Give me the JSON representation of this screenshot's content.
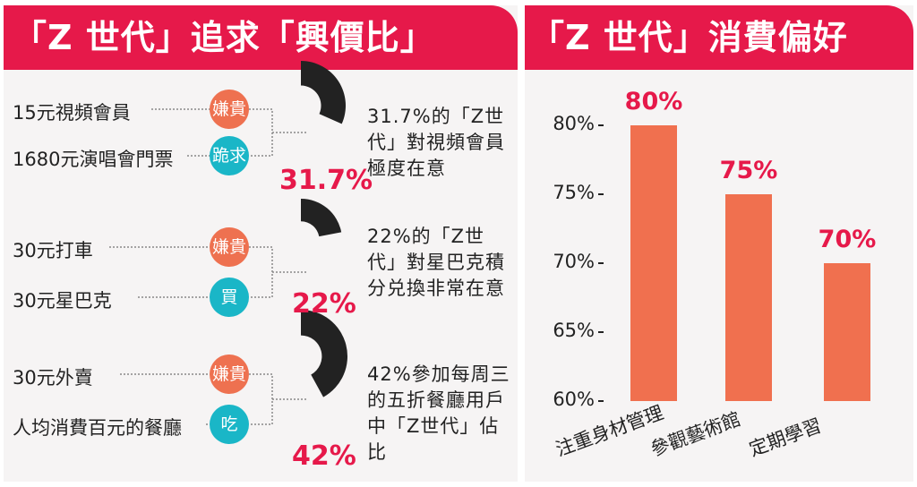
{
  "left": {
    "title": "「Z 世代」追求「興價比」",
    "groups": [
      {
        "item_a": "15元視頻會員",
        "badge_a": "嫌貴",
        "item_b": "1680元演唱會門票",
        "badge_b": "跪求",
        "percent": "31.7%",
        "value": 31.7,
        "description": "31.7%的「Z世代」對視頻會員極度在意"
      },
      {
        "item_a": "30元打車",
        "badge_a": "嫌貴",
        "item_b": "30元星巴克",
        "badge_b": "買",
        "percent": "22%",
        "value": 22,
        "description": "22%的「Z世代」對星巴克積分兑換非常在意"
      },
      {
        "item_a": "30元外賣",
        "badge_a": "嫌貴",
        "item_b": "人均消費百元的餐廳",
        "badge_b": "吃",
        "percent": "42%",
        "value": 42,
        "description": "42%參加每周三的五折餐廳用戶中「Z世代」佔比"
      }
    ],
    "colors": {
      "orange": "#ee7150",
      "teal": "#1ab6c7",
      "red": "#e6194a",
      "dark": "#222222"
    }
  },
  "chart_data": {
    "type": "bar",
    "title": "「Z 世代」消費偏好",
    "categories": [
      "注重身材管理",
      "參觀藝術館",
      "定期學習"
    ],
    "values": [
      80,
      75,
      70
    ],
    "value_labels": [
      "80%",
      "75%",
      "70%"
    ],
    "ylim": [
      60,
      80
    ],
    "yticks": [
      "80%",
      "75%",
      "70%",
      "65%",
      "60%"
    ],
    "ytick_values": [
      80,
      75,
      70,
      65,
      60
    ],
    "bar_color": "#f0704f",
    "label_color": "#e6194a",
    "grid": false
  }
}
